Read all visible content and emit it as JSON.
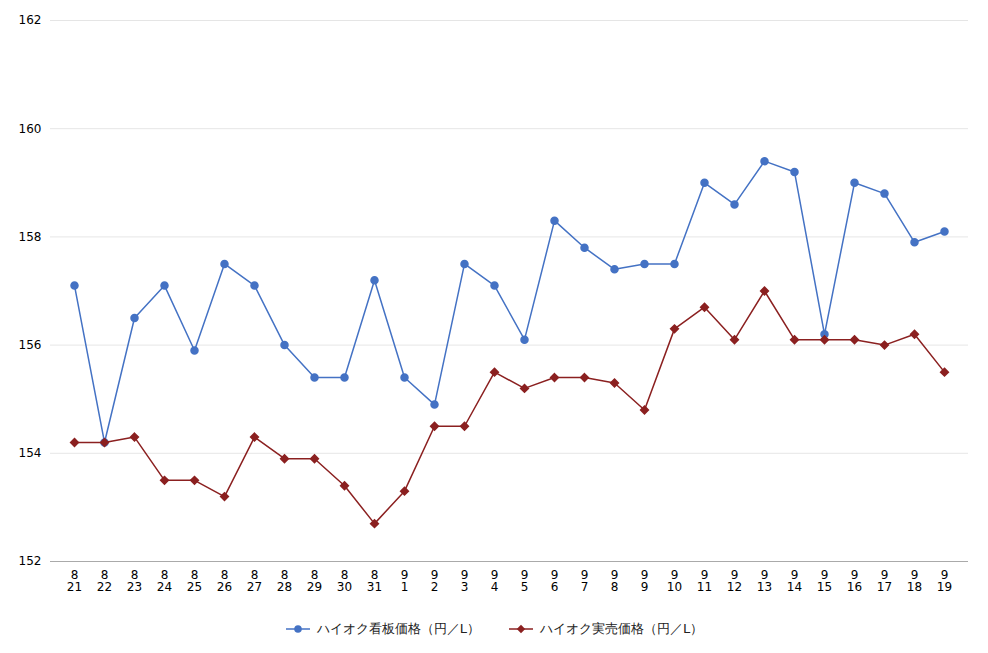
{
  "chart_data": {
    "type": "line",
    "categories": [
      "8\n21",
      "8\n22",
      "8\n23",
      "8\n24",
      "8\n25",
      "8\n26",
      "8\n27",
      "8\n28",
      "8\n29",
      "8\n30",
      "8\n31",
      "9\n1",
      "9\n2",
      "9\n3",
      "9\n4",
      "9\n5",
      "9\n6",
      "9\n7",
      "9\n8",
      "9\n9",
      "9\n10",
      "9\n11",
      "9\n12",
      "9\n13",
      "9\n14",
      "9\n15",
      "9\n16",
      "9\n17",
      "9\n18",
      "9\n19"
    ],
    "series": [
      {
        "name": "ハイオク看板価格（円／L）",
        "color": "#4472C4",
        "marker": "circle",
        "values": [
          157.1,
          154.2,
          156.5,
          157.1,
          155.9,
          157.5,
          157.1,
          156.0,
          155.4,
          155.4,
          157.2,
          155.4,
          154.9,
          157.5,
          157.1,
          156.1,
          158.3,
          157.8,
          157.4,
          157.5,
          157.5,
          159.0,
          158.6,
          159.4,
          159.2,
          156.2,
          159.0,
          158.8,
          157.9,
          158.1
        ]
      },
      {
        "name": "ハイオク実売価格（円／L）",
        "color": "#8B2020",
        "marker": "diamond",
        "values": [
          154.2,
          154.2,
          154.3,
          153.5,
          153.5,
          153.2,
          154.3,
          153.9,
          153.9,
          153.4,
          152.7,
          153.3,
          154.5,
          154.5,
          155.5,
          155.2,
          155.4,
          155.4,
          155.3,
          154.8,
          156.3,
          156.7,
          156.1,
          157.0,
          156.1,
          156.1,
          156.1,
          156.0,
          156.2,
          155.5
        ]
      }
    ],
    "ylim": [
      152,
      162
    ],
    "yticks": [
      152,
      154,
      156,
      158,
      160,
      162
    ],
    "grid": true,
    "legend": "bottom"
  }
}
